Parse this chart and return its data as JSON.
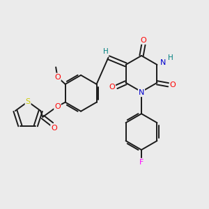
{
  "background_color": "#ebebeb",
  "bond_color": "#1a1a1a",
  "colors": {
    "O": "#ff0000",
    "N": "#0000cd",
    "S": "#cccc00",
    "F": "#ff00ff",
    "H_teal": "#008080",
    "C": "#1a1a1a"
  },
  "figsize": [
    3.0,
    3.0
  ],
  "dpi": 100
}
